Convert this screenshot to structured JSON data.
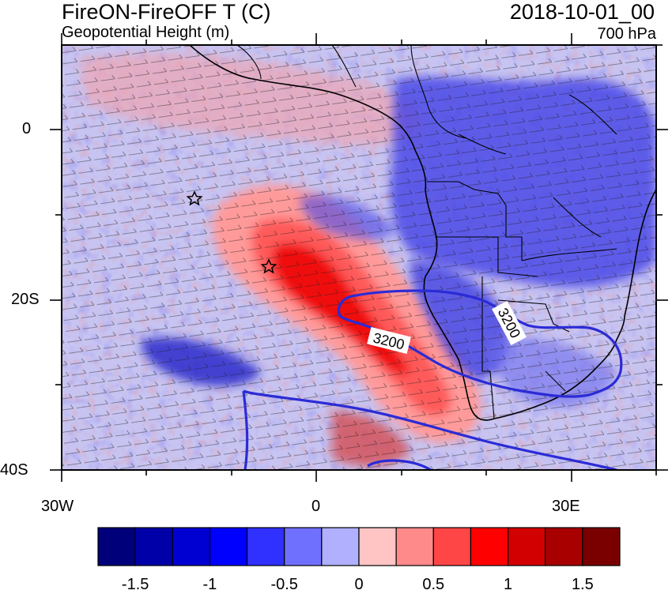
{
  "header": {
    "title_left": "FireON-FireOFF T (C)",
    "subtitle_left": "Geopotential Height (m)",
    "title_right": "2018-10-01_00",
    "subtitle_right": "700 hPa"
  },
  "axes": {
    "x_ticks": [
      "30W",
      "0",
      "30E"
    ],
    "y_ticks": [
      "0",
      "20S",
      "40S"
    ],
    "lon_range": [
      -30,
      40
    ],
    "lat_range": [
      -40,
      10
    ]
  },
  "contours": {
    "variable": "geopotential height",
    "labels": [
      "3200",
      "3200"
    ],
    "line_color": "#2b2bd6"
  },
  "markers": [
    {
      "type": "star",
      "lon": -14.5,
      "lat": -8
    },
    {
      "type": "star",
      "lon": -5.5,
      "lat": -16
    }
  ],
  "colorbar": {
    "colors": [
      "#00007a",
      "#0000a8",
      "#0000d2",
      "#0000ff",
      "#3030ff",
      "#7070ff",
      "#b0b0ff",
      "#ffc4c4",
      "#ff8a8a",
      "#ff4646",
      "#ff0000",
      "#d20000",
      "#a80000",
      "#7a0000"
    ],
    "tick_labels": [
      "-1.5",
      "-1",
      "-0.5",
      "0",
      "0.5",
      "1",
      "1.5"
    ],
    "tick_values": [
      -1.5,
      -1,
      -0.5,
      0,
      0.5,
      1,
      1.5
    ],
    "range": [
      -1.75,
      1.75
    ]
  }
}
